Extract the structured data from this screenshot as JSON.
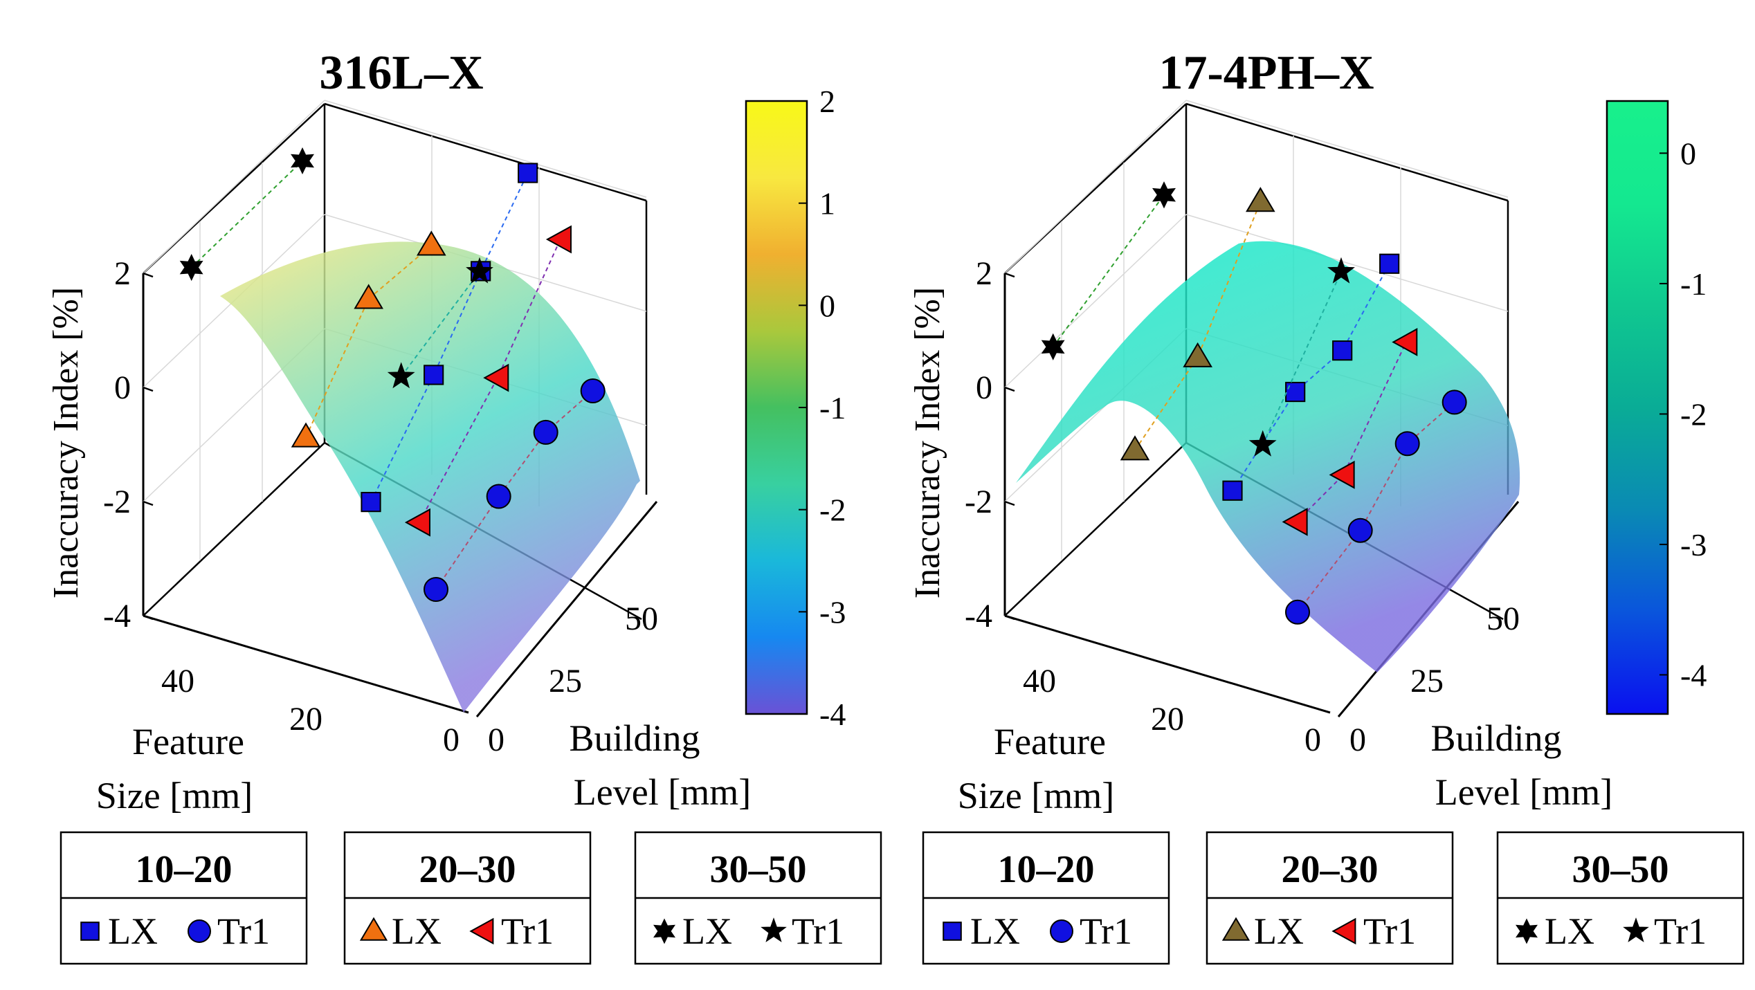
{
  "chart_data": [
    {
      "type": "scatter3d",
      "title": "316L–X",
      "zlabel": "Inaccuracy Index [%]",
      "xlabel": "Feature\nSize [mm]",
      "ylabel": "Building\nLevel [mm]",
      "xticks": [
        "40",
        "20",
        "0"
      ],
      "yticks": [
        "0",
        "25",
        "50"
      ],
      "zticks": [
        "2",
        "0",
        "-2",
        "-4"
      ],
      "colorbar": {
        "range": [
          -4,
          2
        ],
        "ticks": [
          "2",
          "1",
          "0",
          "-1",
          "-2",
          "-3",
          "-4"
        ],
        "colors": [
          "#6a52d6",
          "#1688f0",
          "#1ab8da",
          "#38d0a0",
          "#44c060",
          "#aac83c",
          "#f0b030",
          "#f8e840",
          "#f8f818"
        ]
      },
      "surface_colors": {
        "high": "#f8e880",
        "mid": "#4ad8c8",
        "low": "#8a7ae0"
      },
      "series": [
        {
          "group": "10–20",
          "name": "LX",
          "marker": "square",
          "color": "#1010e0",
          "points": [
            [
              15,
              0,
              -0.8
            ],
            [
              15,
              20,
              0.2
            ],
            [
              15,
              35,
              1.1
            ],
            [
              15,
              50,
              1.9
            ]
          ]
        },
        {
          "group": "10–20",
          "name": "Tr1",
          "marker": "circle",
          "color": "#1010e0",
          "points": [
            [
              5,
              0,
              -2.0
            ],
            [
              5,
              20,
              -1.6
            ],
            [
              5,
              35,
              -1.4
            ],
            [
              5,
              50,
              -1.6
            ]
          ]
        },
        {
          "group": "20–30",
          "name": "LX",
          "marker": "triangle",
          "color": "#f07010",
          "points": [
            [
              25,
              0,
              0.0
            ],
            [
              25,
              20,
              1.2
            ],
            [
              25,
              40,
              0.9
            ]
          ]
        },
        {
          "group": "20–30",
          "name": "Tr1",
          "marker": "triangle-left",
          "color": "#ee1010",
          "points": [
            [
              10,
              5,
              -1.3
            ],
            [
              10,
              30,
              -0.3
            ],
            [
              10,
              50,
              0.9
            ]
          ]
        },
        {
          "group": "30–50",
          "name": "LX",
          "marker": "hexagram",
          "color": "#000000",
          "points": [
            [
              45,
              5,
              2.0
            ],
            [
              40,
              30,
              2.5
            ]
          ]
        },
        {
          "group": "30–50",
          "name": "Tr1",
          "marker": "pentagram",
          "color": "#000000",
          "points": [
            [
              20,
              20,
              0.0
            ],
            [
              20,
              45,
              0.3
            ]
          ]
        }
      ],
      "legends": [
        {
          "title": "10–20",
          "items": [
            "LX",
            "Tr1"
          ]
        },
        {
          "title": "20–30",
          "items": [
            "LX",
            "Tr1"
          ]
        },
        {
          "title": "30–50",
          "items": [
            "LX",
            "Tr1"
          ]
        }
      ]
    },
    {
      "type": "scatter3d",
      "title": "17-4PH–X",
      "zlabel": "Inaccuracy Index [%]",
      "xlabel": "Feature\nSize [mm]",
      "ylabel": "Building\nLevel [mm]",
      "xticks": [
        "40",
        "20",
        "0"
      ],
      "yticks": [
        "0",
        "25",
        "50"
      ],
      "zticks": [
        "2",
        "0",
        "-2",
        "-4"
      ],
      "colorbar": {
        "range": [
          -4.3,
          0.4
        ],
        "ticks": [
          "0",
          "-1",
          "-2",
          "-3",
          "-4"
        ],
        "colors": [
          "#0a10f0",
          "#0a55dc",
          "#0a8ab4",
          "#0aac96",
          "#10c890",
          "#14e890",
          "#18f08c"
        ]
      },
      "surface_colors": {
        "high": "#10eecc",
        "mid": "#3ad8c0",
        "low": "#7a6ae0"
      },
      "series": [
        {
          "group": "10–20",
          "name": "LX",
          "marker": "square",
          "color": "#1010e0",
          "points": [
            [
              15,
              0,
              -0.6
            ],
            [
              15,
              20,
              -0.1
            ],
            [
              15,
              35,
              -0.3
            ],
            [
              15,
              50,
              0.3
            ]
          ]
        },
        {
          "group": "10–20",
          "name": "Tr1",
          "marker": "circle",
          "color": "#1010e0",
          "points": [
            [
              5,
              0,
              -2.4
            ],
            [
              5,
              20,
              -2.2
            ],
            [
              5,
              35,
              -1.6
            ],
            [
              5,
              50,
              -1.8
            ]
          ]
        },
        {
          "group": "20–30",
          "name": "LX",
          "marker": "triangle",
          "color": "#806a30",
          "points": [
            [
              30,
              0,
              -0.4
            ],
            [
              30,
              20,
              0.0
            ],
            [
              30,
              40,
              1.5
            ]
          ]
        },
        {
          "group": "20–30",
          "name": "Tr1",
          "marker": "triangle-left",
          "color": "#ee1010",
          "points": [
            [
              10,
              10,
              -1.6
            ],
            [
              10,
              25,
              -1.7
            ],
            [
              10,
              45,
              -0.6
            ]
          ]
        },
        {
          "group": "30–50",
          "name": "LX",
          "marker": "hexagram",
          "color": "#000000",
          "points": [
            [
              45,
              5,
              0.6
            ],
            [
              40,
              30,
              1.9
            ]
          ]
        },
        {
          "group": "30–50",
          "name": "Tr1",
          "marker": "pentagram",
          "color": "#000000",
          "points": [
            [
              20,
              20,
              -1.2
            ],
            [
              20,
              45,
              0.3
            ]
          ]
        }
      ],
      "legends": [
        {
          "title": "10–20",
          "items": [
            "LX",
            "Tr1"
          ]
        },
        {
          "title": "20–30",
          "items": [
            "LX",
            "Tr1"
          ]
        },
        {
          "title": "30–50",
          "items": [
            "LX",
            "Tr1"
          ]
        }
      ]
    }
  ]
}
